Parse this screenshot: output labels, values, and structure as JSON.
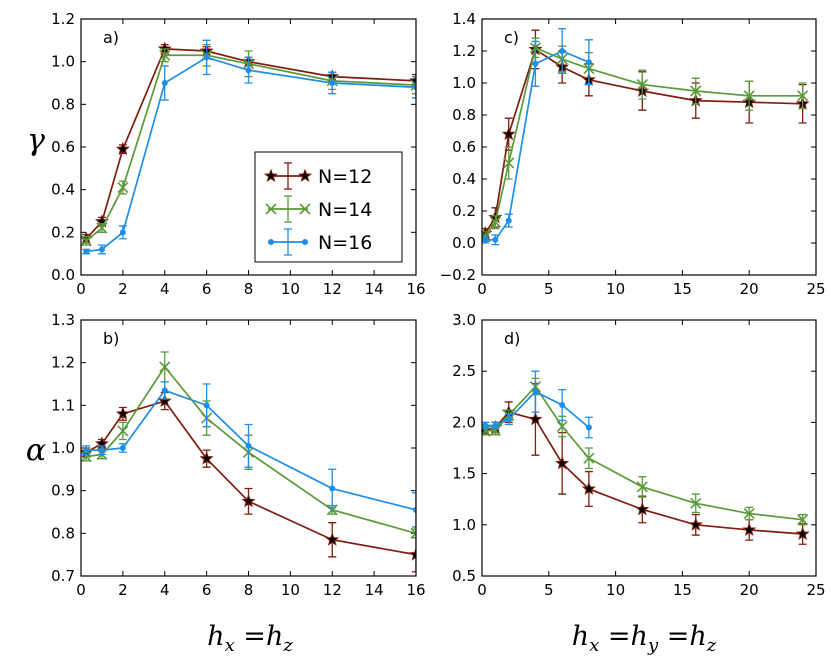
{
  "colors": {
    "N12": "#7f1d0f",
    "N14": "#5b9a3a",
    "N16": "#1f8ee6"
  },
  "labels": {
    "gamma": "γ",
    "alpha": "α",
    "xlabel_left": {
      "h1": "h",
      "s1": "x",
      "eq1": " =",
      "h2": "h",
      "s2": "z"
    },
    "xlabel_right": {
      "h1": "h",
      "s1": "x",
      "eq1": " =",
      "h2": "h",
      "s2": "y",
      "eq2": " =",
      "h3": "h",
      "s3": "z"
    }
  },
  "legend": {
    "entries": [
      "N=12",
      "N=14",
      "N=16"
    ],
    "placement": "center-right of panel a"
  },
  "chart_data": [
    {
      "panel": "a)",
      "type": "line",
      "ylabel": "γ",
      "xlim": [
        0,
        16
      ],
      "ylim": [
        0,
        1.2
      ],
      "xticks": [
        0,
        2,
        4,
        6,
        8,
        10,
        12,
        14,
        16
      ],
      "yticks": [
        0.0,
        0.2,
        0.4,
        0.6,
        0.8,
        1.0,
        1.2
      ],
      "ytick_labels": [
        "0.0",
        "0.2",
        "0.4",
        "0.6",
        "0.8",
        "1.0",
        "1.2"
      ],
      "series": [
        {
          "name": "N=12",
          "x": [
            0.25,
            1,
            2,
            4,
            6,
            8,
            12,
            16
          ],
          "y": [
            0.17,
            0.25,
            0.59,
            1.06,
            1.05,
            1.0,
            0.93,
            0.91
          ],
          "err": [
            0.02,
            0.02,
            0.02,
            0.02,
            0.02,
            0.02,
            0.02,
            0.03
          ]
        },
        {
          "name": "N=14",
          "x": [
            0.25,
            1,
            2,
            4,
            6,
            8,
            12,
            16
          ],
          "y": [
            0.16,
            0.22,
            0.41,
            1.03,
            1.03,
            0.99,
            0.91,
            0.89
          ],
          "err": [
            0.02,
            0.02,
            0.03,
            0.03,
            0.05,
            0.06,
            0.04,
            0.04
          ]
        },
        {
          "name": "N=16",
          "x": [
            0.25,
            1,
            2,
            4,
            6,
            8,
            12,
            16
          ],
          "y": [
            0.11,
            0.12,
            0.2,
            0.9,
            1.02,
            0.96,
            0.9,
            0.88
          ],
          "err": [
            0.01,
            0.02,
            0.03,
            0.08,
            0.08,
            0.06,
            0.05,
            0.05
          ]
        }
      ]
    },
    {
      "panel": "c)",
      "type": "line",
      "ylabel": "",
      "xlim": [
        0,
        25
      ],
      "ylim": [
        -0.2,
        1.4
      ],
      "xticks": [
        0,
        5,
        10,
        15,
        20,
        25
      ],
      "yticks": [
        -0.2,
        0.0,
        0.2,
        0.4,
        0.6,
        0.8,
        1.0,
        1.2,
        1.4
      ],
      "ytick_labels": [
        "−0.2",
        "0.0",
        "0.2",
        "0.4",
        "0.6",
        "0.8",
        "1.0",
        "1.2",
        "1.4"
      ],
      "series": [
        {
          "name": "N=12",
          "x": [
            0.25,
            1,
            2,
            4,
            6,
            8,
            12,
            16,
            20,
            24
          ],
          "y": [
            0.06,
            0.16,
            0.68,
            1.21,
            1.1,
            1.02,
            0.95,
            0.89,
            0.88,
            0.87
          ],
          "err": [
            0.03,
            0.06,
            0.1,
            0.12,
            0.1,
            0.1,
            0.12,
            0.11,
            0.13,
            0.12
          ]
        },
        {
          "name": "N=14",
          "x": [
            0.25,
            1,
            2,
            4,
            6,
            8,
            12,
            16,
            20,
            24
          ],
          "y": [
            0.04,
            0.13,
            0.5,
            1.22,
            1.15,
            1.09,
            0.99,
            0.95,
            0.92,
            0.92
          ],
          "err": [
            0.03,
            0.04,
            0.1,
            0.06,
            0.08,
            0.1,
            0.09,
            0.08,
            0.09,
            0.08
          ]
        },
        {
          "name": "N=16",
          "x": [
            0.25,
            1,
            2,
            4,
            6,
            8
          ],
          "y": [
            0.02,
            0.02,
            0.14,
            1.12,
            1.2,
            1.13
          ],
          "err": [
            0.02,
            0.03,
            0.04,
            0.14,
            0.14,
            0.14
          ]
        }
      ]
    },
    {
      "panel": "b)",
      "type": "line",
      "ylabel": "α",
      "xlim": [
        0,
        16
      ],
      "ylim": [
        0.7,
        1.3
      ],
      "xticks": [
        0,
        2,
        4,
        6,
        8,
        10,
        12,
        14,
        16
      ],
      "yticks": [
        0.7,
        0.8,
        0.9,
        1.0,
        1.1,
        1.2,
        1.3
      ],
      "ytick_labels": [
        "0.7",
        "0.8",
        "0.9",
        "1.0",
        "1.1",
        "1.2",
        "1.3"
      ],
      "series": [
        {
          "name": "N=12",
          "x": [
            0.25,
            1,
            2,
            4,
            6,
            8,
            12,
            16
          ],
          "y": [
            0.99,
            1.01,
            1.08,
            1.11,
            0.975,
            0.875,
            0.785,
            0.75
          ],
          "err": [
            0.01,
            0.01,
            0.015,
            0.02,
            0.02,
            0.03,
            0.04,
            0.04
          ]
        },
        {
          "name": "N=14",
          "x": [
            0.25,
            1,
            2,
            4,
            6,
            8,
            12,
            16
          ],
          "y": [
            0.98,
            0.985,
            1.04,
            1.19,
            1.07,
            0.99,
            0.855,
            0.8
          ],
          "err": [
            0.01,
            0.01,
            0.02,
            0.035,
            0.04,
            0.04,
            0.01,
            0.01
          ]
        },
        {
          "name": "N=16",
          "x": [
            0.25,
            1,
            2,
            4,
            6,
            8,
            12,
            16
          ],
          "y": [
            0.995,
            0.995,
            1.0,
            1.135,
            1.1,
            1.005,
            0.905,
            0.855
          ],
          "err": [
            0.01,
            0.01,
            0.01,
            0.02,
            0.05,
            0.05,
            0.045,
            0.04
          ]
        }
      ]
    },
    {
      "panel": "d)",
      "type": "line",
      "ylabel": "",
      "xlim": [
        0,
        25
      ],
      "ylim": [
        0.5,
        3.0
      ],
      "xticks": [
        0,
        5,
        10,
        15,
        20,
        25
      ],
      "yticks": [
        0.5,
        1.0,
        1.5,
        2.0,
        2.5,
        3.0
      ],
      "ytick_labels": [
        "0.5",
        "1.0",
        "1.5",
        "2.0",
        "2.5",
        "3.0"
      ],
      "series": [
        {
          "name": "N=12",
          "x": [
            0.25,
            1,
            2,
            4,
            6,
            8,
            12,
            16,
            20,
            24
          ],
          "y": [
            1.92,
            1.95,
            2.1,
            2.03,
            1.6,
            1.35,
            1.15,
            1.0,
            0.95,
            0.91
          ],
          "err": [
            0.04,
            0.05,
            0.1,
            0.35,
            0.3,
            0.17,
            0.13,
            0.1,
            0.1,
            0.1
          ]
        },
        {
          "name": "N=14",
          "x": [
            0.25,
            1,
            2,
            4,
            6,
            8,
            12,
            16,
            20,
            24
          ],
          "y": [
            1.92,
            1.92,
            2.07,
            2.35,
            1.96,
            1.65,
            1.37,
            1.21,
            1.11,
            1.05
          ],
          "err": [
            0.04,
            0.04,
            0.05,
            0.08,
            0.1,
            0.1,
            0.1,
            0.09,
            0.06,
            0.05
          ]
        },
        {
          "name": "N=16",
          "x": [
            0.25,
            1,
            2,
            4,
            6,
            8
          ],
          "y": [
            1.97,
            1.97,
            2.03,
            2.3,
            2.17,
            1.95
          ],
          "err": [
            0.03,
            0.03,
            0.05,
            0.2,
            0.15,
            0.1
          ]
        }
      ]
    }
  ]
}
